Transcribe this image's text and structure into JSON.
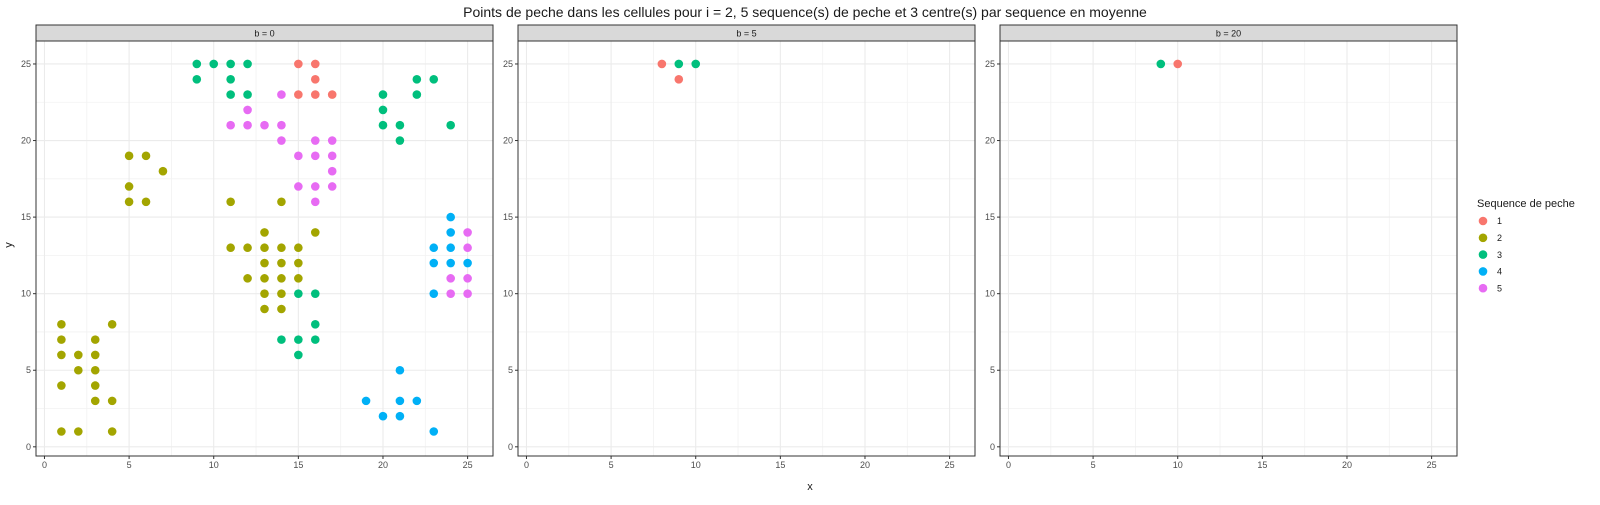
{
  "chart_data": {
    "type": "scatter",
    "title": "Points de peche dans les cellules pour i = 2, 5 sequence(s) de peche et 3 centre(s) par sequence en moyenne",
    "xlabel": "x",
    "ylabel": "y",
    "xlim": [
      -0.5,
      26.5
    ],
    "ylim": [
      -0.6,
      26.5
    ],
    "xticks": [
      0,
      5,
      10,
      15,
      20,
      25
    ],
    "yticks": [
      0,
      5,
      10,
      15,
      20,
      25
    ],
    "grid": true,
    "legend": {
      "title": "Sequence de peche",
      "position": "right",
      "entries": [
        {
          "label": "1",
          "color": "#F8766D"
        },
        {
          "label": "2",
          "color": "#A3A500"
        },
        {
          "label": "3",
          "color": "#00BF7D"
        },
        {
          "label": "4",
          "color": "#00B0F6"
        },
        {
          "label": "5",
          "color": "#E76BF3"
        }
      ]
    },
    "panels": [
      {
        "strip": "b = 0",
        "series": [
          {
            "name": "1",
            "points": [
              [
                15,
                25
              ],
              [
                16,
                25
              ],
              [
                16,
                24
              ],
              [
                15,
                23
              ],
              [
                16,
                23
              ],
              [
                17,
                23
              ]
            ]
          },
          {
            "name": "2",
            "points": [
              [
                5,
                19
              ],
              [
                6,
                19
              ],
              [
                7,
                18
              ],
              [
                5,
                17
              ],
              [
                5,
                16
              ],
              [
                6,
                16
              ],
              [
                11,
                16
              ],
              [
                14,
                16
              ],
              [
                13,
                14
              ],
              [
                16,
                14
              ],
              [
                11,
                13
              ],
              [
                12,
                13
              ],
              [
                13,
                13
              ],
              [
                14,
                13
              ],
              [
                15,
                13
              ],
              [
                13,
                12
              ],
              [
                14,
                12
              ],
              [
                15,
                12
              ],
              [
                12,
                11
              ],
              [
                13,
                11
              ],
              [
                14,
                11
              ],
              [
                15,
                11
              ],
              [
                13,
                10
              ],
              [
                14,
                10
              ],
              [
                13,
                9
              ],
              [
                14,
                9
              ],
              [
                1,
                8
              ],
              [
                4,
                8
              ],
              [
                1,
                7
              ],
              [
                3,
                7
              ],
              [
                1,
                6
              ],
              [
                2,
                6
              ],
              [
                3,
                6
              ],
              [
                2,
                5
              ],
              [
                3,
                5
              ],
              [
                1,
                4
              ],
              [
                3,
                4
              ],
              [
                3,
                3
              ],
              [
                4,
                3
              ],
              [
                1,
                1
              ],
              [
                2,
                1
              ],
              [
                4,
                1
              ]
            ]
          },
          {
            "name": "3",
            "points": [
              [
                9,
                25
              ],
              [
                10,
                25
              ],
              [
                11,
                25
              ],
              [
                12,
                25
              ],
              [
                9,
                24
              ],
              [
                11,
                24
              ],
              [
                11,
                23
              ],
              [
                12,
                23
              ],
              [
                20,
                23
              ],
              [
                22,
                24
              ],
              [
                23,
                24
              ],
              [
                22,
                23
              ],
              [
                20,
                22
              ],
              [
                20,
                21
              ],
              [
                21,
                21
              ],
              [
                24,
                21
              ],
              [
                21,
                20
              ],
              [
                15,
                10
              ],
              [
                16,
                10
              ],
              [
                16,
                8
              ],
              [
                14,
                7
              ],
              [
                15,
                7
              ],
              [
                16,
                7
              ],
              [
                15,
                6
              ]
            ]
          },
          {
            "name": "4",
            "points": [
              [
                24,
                15
              ],
              [
                23,
                13
              ],
              [
                24,
                13
              ],
              [
                24,
                14
              ],
              [
                23,
                12
              ],
              [
                24,
                12
              ],
              [
                25,
                12
              ],
              [
                23,
                10
              ],
              [
                21,
                5
              ],
              [
                19,
                3
              ],
              [
                21,
                3
              ],
              [
                22,
                3
              ],
              [
                20,
                2
              ],
              [
                21,
                2
              ],
              [
                23,
                1
              ]
            ]
          },
          {
            "name": "5",
            "points": [
              [
                14,
                23
              ],
              [
                12,
                22
              ],
              [
                11,
                21
              ],
              [
                12,
                21
              ],
              [
                13,
                21
              ],
              [
                14,
                21
              ],
              [
                14,
                20
              ],
              [
                16,
                20
              ],
              [
                17,
                20
              ],
              [
                15,
                19
              ],
              [
                16,
                19
              ],
              [
                17,
                19
              ],
              [
                17,
                18
              ],
              [
                15,
                17
              ],
              [
                16,
                17
              ],
              [
                17,
                17
              ],
              [
                16,
                16
              ],
              [
                25,
                14
              ],
              [
                25,
                13
              ],
              [
                24,
                11
              ],
              [
                25,
                11
              ],
              [
                24,
                10
              ],
              [
                25,
                10
              ]
            ]
          }
        ]
      },
      {
        "strip": "b = 5",
        "series": [
          {
            "name": "1",
            "points": [
              [
                8,
                25
              ],
              [
                9,
                24
              ]
            ]
          },
          {
            "name": "3",
            "points": [
              [
                9,
                25
              ],
              [
                10,
                25
              ]
            ]
          }
        ]
      },
      {
        "strip": "b = 20",
        "series": [
          {
            "name": "1",
            "points": [
              [
                10,
                25
              ]
            ]
          },
          {
            "name": "3",
            "points": [
              [
                9,
                25
              ]
            ]
          }
        ]
      }
    ]
  }
}
